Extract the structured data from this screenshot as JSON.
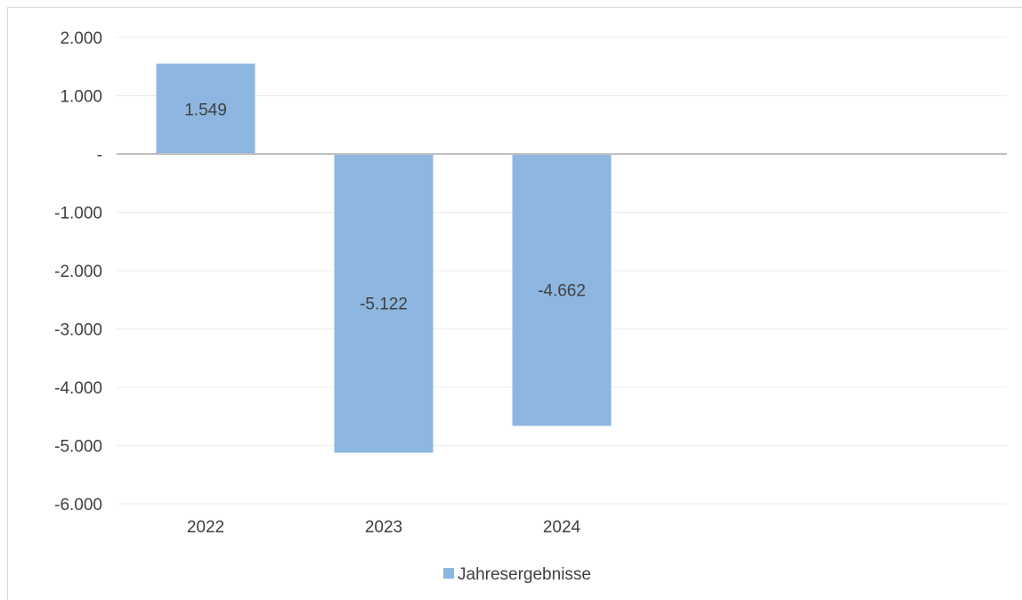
{
  "chart_data": {
    "type": "bar",
    "categories": [
      "2022",
      "2023",
      "2024"
    ],
    "series": [
      {
        "name": "Jahresergebnisse",
        "values": [
          1549,
          -5122,
          -4662
        ],
        "data_labels": [
          "1.549",
          "-5.122",
          "-4.662"
        ],
        "color": "#8db6e0"
      }
    ],
    "ylim": [
      -6000,
      2000
    ],
    "yticks": [
      2000,
      1000,
      0,
      -1000,
      -2000,
      -3000,
      -4000,
      -5000,
      -6000
    ],
    "ytick_labels": [
      "2.000",
      "1.000",
      "-",
      "-1.000",
      "-2.000",
      "-3.000",
      "-4.000",
      "-5.000",
      "-6.000"
    ],
    "grid": true,
    "legend": "bottom-center",
    "colors": {
      "bar": "#8db6e0",
      "grid": "#ececec",
      "zero_line": "#bfbfbf",
      "text": "#404040",
      "frame": "#d9d9d9"
    }
  }
}
